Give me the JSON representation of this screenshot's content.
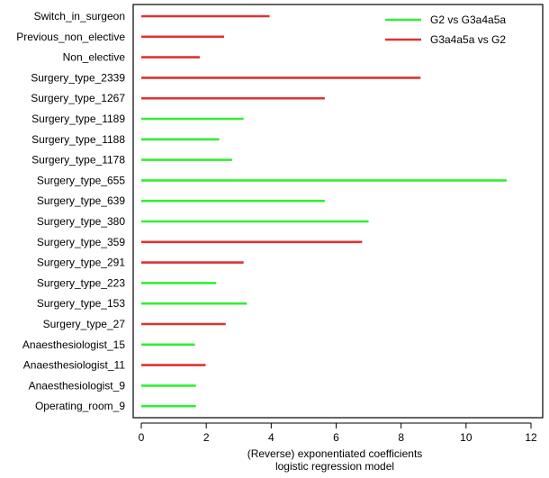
{
  "chart_data": {
    "type": "bar",
    "orientation": "horizontal",
    "xlabel_line1": "(Reverse) exponentiated coefficients",
    "xlabel_line2": "logistic regression model",
    "xlim": [
      0,
      12
    ],
    "xticks": [
      0,
      2,
      4,
      6,
      8,
      10,
      12
    ],
    "legend_position": "top-right",
    "series": [
      {
        "name": "G2 vs G3a4a5a",
        "color": "#33ee33"
      },
      {
        "name": "G3a4a5a vs G2",
        "color": "#dd3333"
      }
    ],
    "categories": [
      "Switch_in_surgeon",
      "Previous_non_elective",
      "Non_elective",
      "Surgery_type_2339",
      "Surgery_type_1267",
      "Surgery_type_1189",
      "Surgery_type_1188",
      "Surgery_type_1178",
      "Surgery_type_655",
      "Surgery_type_639",
      "Surgery_type_380",
      "Surgery_type_359",
      "Surgery_type_291",
      "Surgery_type_223",
      "Surgery_type_153",
      "Surgery_type_27",
      "Anaesthesiologist_15",
      "Anaesthesiologist_11",
      "Anaesthesiologist_9",
      "Operating_room_9"
    ],
    "values": [
      3.95,
      2.55,
      1.8,
      8.6,
      5.65,
      3.15,
      2.4,
      2.8,
      11.25,
      5.65,
      7.0,
      6.8,
      3.15,
      2.3,
      3.25,
      2.6,
      1.65,
      1.98,
      1.68,
      1.68
    ],
    "series_index": [
      1,
      1,
      1,
      1,
      1,
      0,
      0,
      0,
      0,
      0,
      0,
      1,
      1,
      0,
      0,
      1,
      0,
      1,
      0,
      0
    ]
  }
}
